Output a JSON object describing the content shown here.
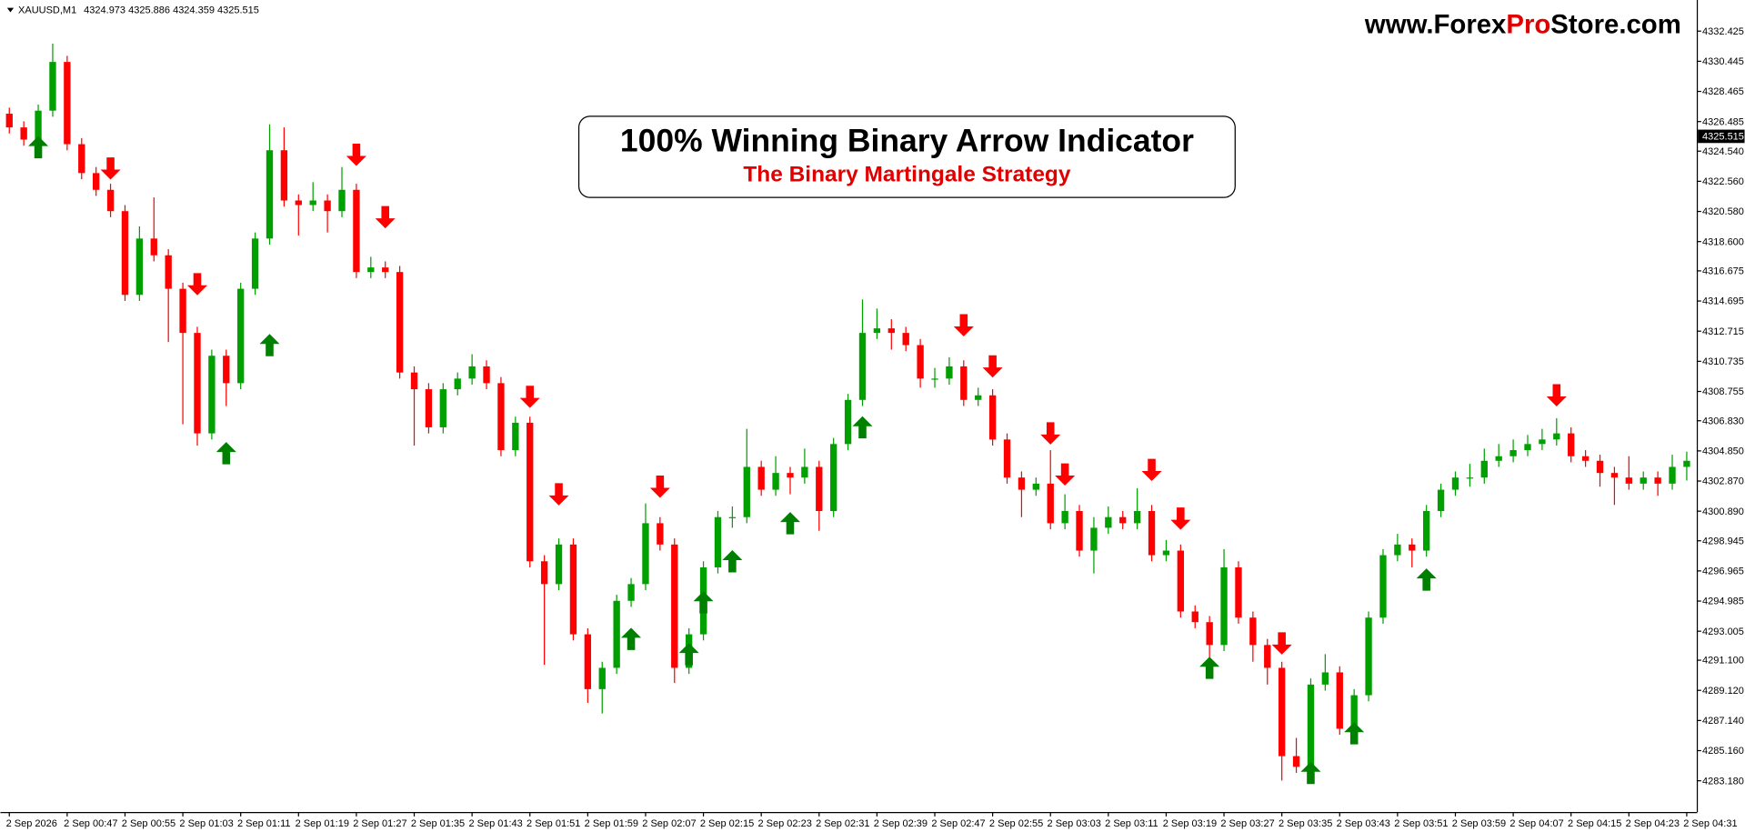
{
  "header": {
    "symbol": "XAUUSD,M1",
    "ohlc": [
      4324.973,
      4325.886,
      4324.359,
      4325.515
    ]
  },
  "watermark": {
    "part1": "www.Forex",
    "part2": "Pro",
    "part3": "Store.com"
  },
  "title_box": {
    "title": "100% Winning Binary Arrow Indicator",
    "subtitle": "The Binary Martingale Strategy"
  },
  "chart_data": {
    "type": "candlestick",
    "up_color": "#00a000",
    "down_color": "#ff0000",
    "grid": false,
    "ylim": [
      4281.13,
      4334.47
    ],
    "yticks": [
      4332.425,
      4330.445,
      4328.465,
      4326.485,
      {
        "value": 4324.54,
        "label": "4324.540"
      },
      {
        "value": 4322.56,
        "label": "4322.560"
      },
      {
        "value": 4320.58,
        "label": "4320.580"
      },
      {
        "value": 4318.6,
        "label": "4318.600"
      },
      4316.675,
      4314.695,
      4312.715,
      4310.735,
      4308.755,
      {
        "value": 4306.83,
        "label": "4306.830"
      },
      {
        "value": 4304.85,
        "label": "4304.850"
      },
      {
        "value": 4302.87,
        "label": "4302.870"
      },
      {
        "value": 4300.89,
        "label": "4300.890"
      },
      4298.945,
      4296.965,
      4294.985,
      4293.005,
      {
        "value": 4291.1,
        "label": "4291.100"
      },
      {
        "value": 4289.12,
        "label": "4289.120"
      },
      {
        "value": 4287.14,
        "label": "4287.140"
      },
      {
        "value": 4285.16,
        "label": "4285.160"
      },
      {
        "value": 4283.18,
        "label": "4283.180"
      }
    ],
    "categories": [
      "2 Sep 2026",
      null,
      null,
      null,
      "2 Sep 00:47",
      null,
      null,
      null,
      "2 Sep 00:55",
      null,
      null,
      null,
      "2 Sep 01:03",
      null,
      null,
      null,
      "2 Sep 01:11",
      null,
      null,
      null,
      "2 Sep 01:19",
      null,
      null,
      null,
      "2 Sep 01:27",
      null,
      null,
      null,
      "2 Sep 01:35",
      null,
      null,
      null,
      "2 Sep 01:43",
      null,
      null,
      null,
      "2 Sep 01:51",
      null,
      null,
      null,
      "2 Sep 01:59",
      null,
      null,
      null,
      "2 Sep 02:07",
      null,
      null,
      null,
      "2 Sep 02:15",
      null,
      null,
      null,
      "2 Sep 02:23",
      null,
      null,
      null,
      "2 Sep 02:31",
      null,
      null,
      null,
      "2 Sep 02:39",
      null,
      null,
      null,
      "2 Sep 02:47",
      null,
      null,
      null,
      "2 Sep 02:55",
      null,
      null,
      null,
      "2 Sep 03:03",
      null,
      null,
      null,
      "2 Sep 03:11",
      null,
      null,
      null,
      "2 Sep 03:19",
      null,
      null,
      null,
      "2 Sep 03:27",
      null,
      null,
      null,
      "2 Sep 03:35",
      null,
      null,
      null,
      "2 Sep 03:43",
      null,
      null,
      null,
      "2 Sep 03:51",
      null,
      null,
      null,
      "2 Sep 03:59",
      null,
      null,
      null,
      "2 Sep 04:07",
      null,
      null,
      null,
      "2 Sep 04:15",
      null,
      null,
      null,
      "2 Sep 04:23",
      null,
      null,
      null,
      "2 Sep 04:31"
    ],
    "open": [
      4327.0,
      4326.1,
      4325.3,
      4327.2,
      4330.4,
      4325.0,
      4323.1,
      4322.0,
      4320.6,
      4315.1,
      4318.8,
      4317.7,
      4315.5,
      4312.6,
      4306.0,
      4311.1,
      4309.3,
      4315.5,
      4318.8,
      4324.6,
      4321.3,
      4321.0,
      4321.3,
      4320.6,
      4322.0,
      4316.6,
      4316.9,
      4316.6,
      4310.0,
      4308.9,
      4306.4,
      4308.9,
      4309.6,
      4310.4,
      4309.3,
      4304.9,
      4306.7,
      4297.6,
      4296.1,
      4298.7,
      4292.8,
      4289.2,
      4290.6,
      4295.0,
      4296.1,
      4300.1,
      4298.7,
      4290.6,
      4292.8,
      4297.2,
      4300.5,
      4300.5,
      4303.8,
      4302.3,
      4303.4,
      4303.1,
      4303.8,
      4300.9,
      4305.3,
      4308.2,
      4312.6,
      4312.9,
      4312.6,
      4311.8,
      4309.6,
      4309.6,
      4310.4,
      4308.2,
      4308.5,
      4305.6,
      4303.1,
      4302.3,
      4302.7,
      4300.1,
      4300.9,
      4298.3,
      4299.8,
      4300.5,
      4300.1,
      4300.9,
      4298.0,
      4298.3,
      4294.3,
      4293.6,
      4292.1,
      4297.2,
      4293.9,
      4292.1,
      4290.6,
      4284.8,
      4284.1,
      4289.5,
      4290.3,
      4286.6,
      4288.8,
      4293.9,
      4298.0,
      4298.7,
      4298.3,
      4300.9,
      4302.3,
      4303.1,
      4303.1,
      4304.2,
      4304.5,
      4304.9,
      4305.3,
      4305.6,
      4306.0,
      4304.5,
      4304.2,
      4303.4,
      4303.1,
      4302.7,
      4303.1,
      4302.7,
      4303.8
    ],
    "high": [
      4327.4,
      4326.5,
      4327.6,
      4331.6,
      4330.8,
      4325.4,
      4323.5,
      4322.4,
      4321.0,
      4319.6,
      4321.5,
      4318.1,
      4315.9,
      4313.0,
      4311.5,
      4311.5,
      4315.9,
      4319.2,
      4326.3,
      4326.1,
      4321.7,
      4322.5,
      4321.7,
      4323.5,
      4322.4,
      4317.6,
      4317.3,
      4317.0,
      4310.4,
      4309.3,
      4309.3,
      4310.0,
      4311.2,
      4310.8,
      4309.7,
      4307.1,
      4307.1,
      4298.0,
      4299.1,
      4299.1,
      4293.2,
      4291.0,
      4295.4,
      4296.5,
      4301.4,
      4300.5,
      4299.1,
      4293.2,
      4297.6,
      4300.9,
      4301.2,
      4306.3,
      4304.2,
      4304.5,
      4303.8,
      4305.0,
      4304.2,
      4305.7,
      4308.6,
      4314.8,
      4314.2,
      4313.5,
      4313.0,
      4312.2,
      4310.3,
      4311.0,
      4310.8,
      4309.0,
      4308.9,
      4306.0,
      4303.5,
      4303.1,
      4304.9,
      4302.0,
      4301.3,
      4300.5,
      4301.2,
      4300.9,
      4302.4,
      4301.3,
      4299.0,
      4298.7,
      4294.7,
      4294.0,
      4298.4,
      4297.6,
      4294.3,
      4292.5,
      4291.0,
      4286.0,
      4289.9,
      4291.5,
      4290.7,
      4289.2,
      4294.3,
      4298.4,
      4299.4,
      4299.1,
      4301.3,
      4302.7,
      4303.5,
      4304.0,
      4305.0,
      4305.3,
      4305.6,
      4305.9,
      4306.3,
      4307.0,
      4306.4,
      4304.9,
      4304.6,
      4303.8,
      4304.5,
      4303.5,
      4303.5,
      4304.6,
      4304.8
    ],
    "low": [
      4325.7,
      4324.9,
      4324.9,
      4326.8,
      4324.6,
      4322.7,
      4321.6,
      4320.2,
      4314.7,
      4314.7,
      4317.3,
      4312.0,
      4306.6,
      4305.2,
      4305.6,
      4307.8,
      4308.9,
      4315.1,
      4318.4,
      4320.9,
      4319.0,
      4320.6,
      4319.2,
      4320.2,
      4316.2,
      4316.2,
      4316.2,
      4309.6,
      4305.2,
      4306.0,
      4306.0,
      4308.5,
      4309.2,
      4308.9,
      4304.5,
      4304.5,
      4297.2,
      4290.8,
      4295.7,
      4292.4,
      4288.3,
      4287.6,
      4290.2,
      4294.6,
      4295.7,
      4298.3,
      4289.6,
      4290.2,
      4292.4,
      4296.8,
      4299.8,
      4300.1,
      4301.9,
      4301.9,
      4302.0,
      4302.7,
      4299.6,
      4300.5,
      4304.9,
      4307.8,
      4312.2,
      4311.5,
      4311.4,
      4309.0,
      4309.0,
      4309.2,
      4307.8,
      4307.8,
      4305.2,
      4302.7,
      4300.5,
      4301.9,
      4299.7,
      4299.7,
      4297.9,
      4296.8,
      4299.4,
      4299.7,
      4299.7,
      4297.6,
      4297.6,
      4293.9,
      4293.2,
      4290.3,
      4291.7,
      4293.5,
      4291.0,
      4289.5,
      4283.2,
      4283.7,
      4283.7,
      4289.1,
      4286.2,
      4285.6,
      4288.4,
      4293.5,
      4297.6,
      4297.2,
      4297.9,
      4300.5,
      4301.9,
      4302.5,
      4302.7,
      4303.8,
      4304.1,
      4304.5,
      4304.9,
      4305.2,
      4304.1,
      4303.8,
      4302.5,
      4301.3,
      4302.3,
      4302.3,
      4301.9,
      4302.3,
      4302.9
    ],
    "close": [
      4326.1,
      4325.3,
      4327.2,
      4330.4,
      4325.0,
      4323.1,
      4322.0,
      4320.6,
      4315.1,
      4318.8,
      4317.7,
      4315.5,
      4312.6,
      4306.0,
      4311.1,
      4309.3,
      4315.5,
      4318.8,
      4324.6,
      4321.3,
      4321.0,
      4321.3,
      4320.6,
      4322.0,
      4316.6,
      4316.9,
      4316.6,
      4310.0,
      4308.9,
      4306.4,
      4308.9,
      4309.6,
      4310.4,
      4309.3,
      4304.9,
      4306.7,
      4297.6,
      4296.1,
      4298.7,
      4292.8,
      4289.2,
      4290.6,
      4295.0,
      4296.1,
      4300.1,
      4298.7,
      4290.6,
      4292.8,
      4297.2,
      4300.5,
      4300.5,
      4303.8,
      4302.3,
      4303.4,
      4303.1,
      4303.8,
      4300.9,
      4305.3,
      4308.2,
      4312.6,
      4312.9,
      4312.6,
      4311.8,
      4309.6,
      4309.6,
      4310.4,
      4308.2,
      4308.5,
      4305.6,
      4303.1,
      4302.3,
      4302.7,
      4300.1,
      4300.9,
      4298.3,
      4299.8,
      4300.5,
      4300.1,
      4300.9,
      4298.0,
      4298.3,
      4294.3,
      4293.6,
      4292.1,
      4297.2,
      4293.9,
      4292.1,
      4290.6,
      4284.8,
      4284.1,
      4289.5,
      4290.3,
      4286.6,
      4288.8,
      4293.9,
      4298.0,
      4298.7,
      4298.3,
      4300.9,
      4302.3,
      4303.1,
      4303.1,
      4304.2,
      4304.5,
      4304.9,
      4305.3,
      4305.6,
      4306.0,
      4304.5,
      4304.2,
      4303.4,
      4303.1,
      4302.7,
      4303.1,
      4302.7,
      4303.8,
      4304.2
    ],
    "buy_arrows": {
      "color": "#008000",
      "index": [
        2,
        15,
        18,
        43,
        47,
        48,
        50,
        54,
        59,
        83,
        90,
        93,
        98
      ],
      "price": [
        4324.8,
        4304.7,
        4311.8,
        4292.5,
        4291.5,
        4294.9,
        4297.6,
        4300.1,
        4306.4,
        4290.6,
        4283.7,
        4286.3,
        4296.4
      ]
    },
    "sell_arrows": {
      "color": "#ff0000",
      "index": [
        7,
        13,
        24,
        26,
        36,
        38,
        45,
        66,
        68,
        72,
        73,
        79,
        81,
        88,
        107
      ],
      "price": [
        4323.4,
        4315.8,
        4324.3,
        4320.2,
        4308.4,
        4302.0,
        4302.5,
        4313.1,
        4310.4,
        4306.0,
        4303.3,
        4303.6,
        4300.4,
        4292.2,
        4308.5
      ]
    }
  }
}
